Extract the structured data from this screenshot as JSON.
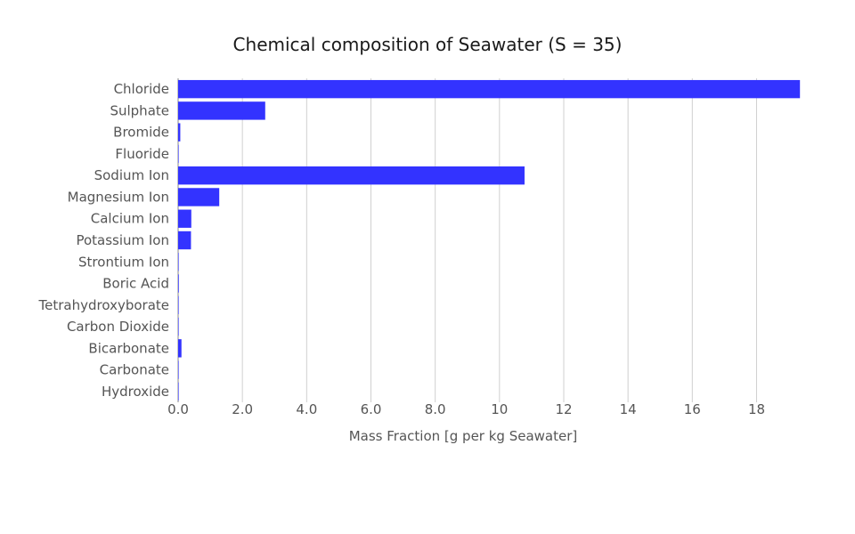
{
  "chart_data": {
    "type": "bar",
    "orientation": "horizontal",
    "title": "Chemical composition of Seawater (S = 35)",
    "xlabel": "Mass Fraction [g per kg Seawater]",
    "ylabel": "",
    "xlim": [
      0,
      19.4
    ],
    "grid": true,
    "bar_color": "#3333ff",
    "x_ticks": [
      "0.0",
      "2.0",
      "4.0",
      "6.0",
      "8.0",
      "10",
      "12",
      "14",
      "16",
      "18"
    ],
    "categories": [
      "Chloride",
      "Sulphate",
      "Bromide",
      "Fluoride",
      "Sodium Ion",
      "Magnesium Ion",
      "Calcium Ion",
      "Potassium Ion",
      "Strontium Ion",
      "Boric Acid",
      "Tetrahydroxyborate",
      "Carbon Dioxide",
      "Bicarbonate",
      "Carbonate",
      "Hydroxide"
    ],
    "values": [
      19.35,
      2.71,
      0.067,
      0.0013,
      10.78,
      1.28,
      0.41,
      0.4,
      0.008,
      0.021,
      0.008,
      0.0004,
      0.104,
      0.014,
      0.0001
    ]
  }
}
